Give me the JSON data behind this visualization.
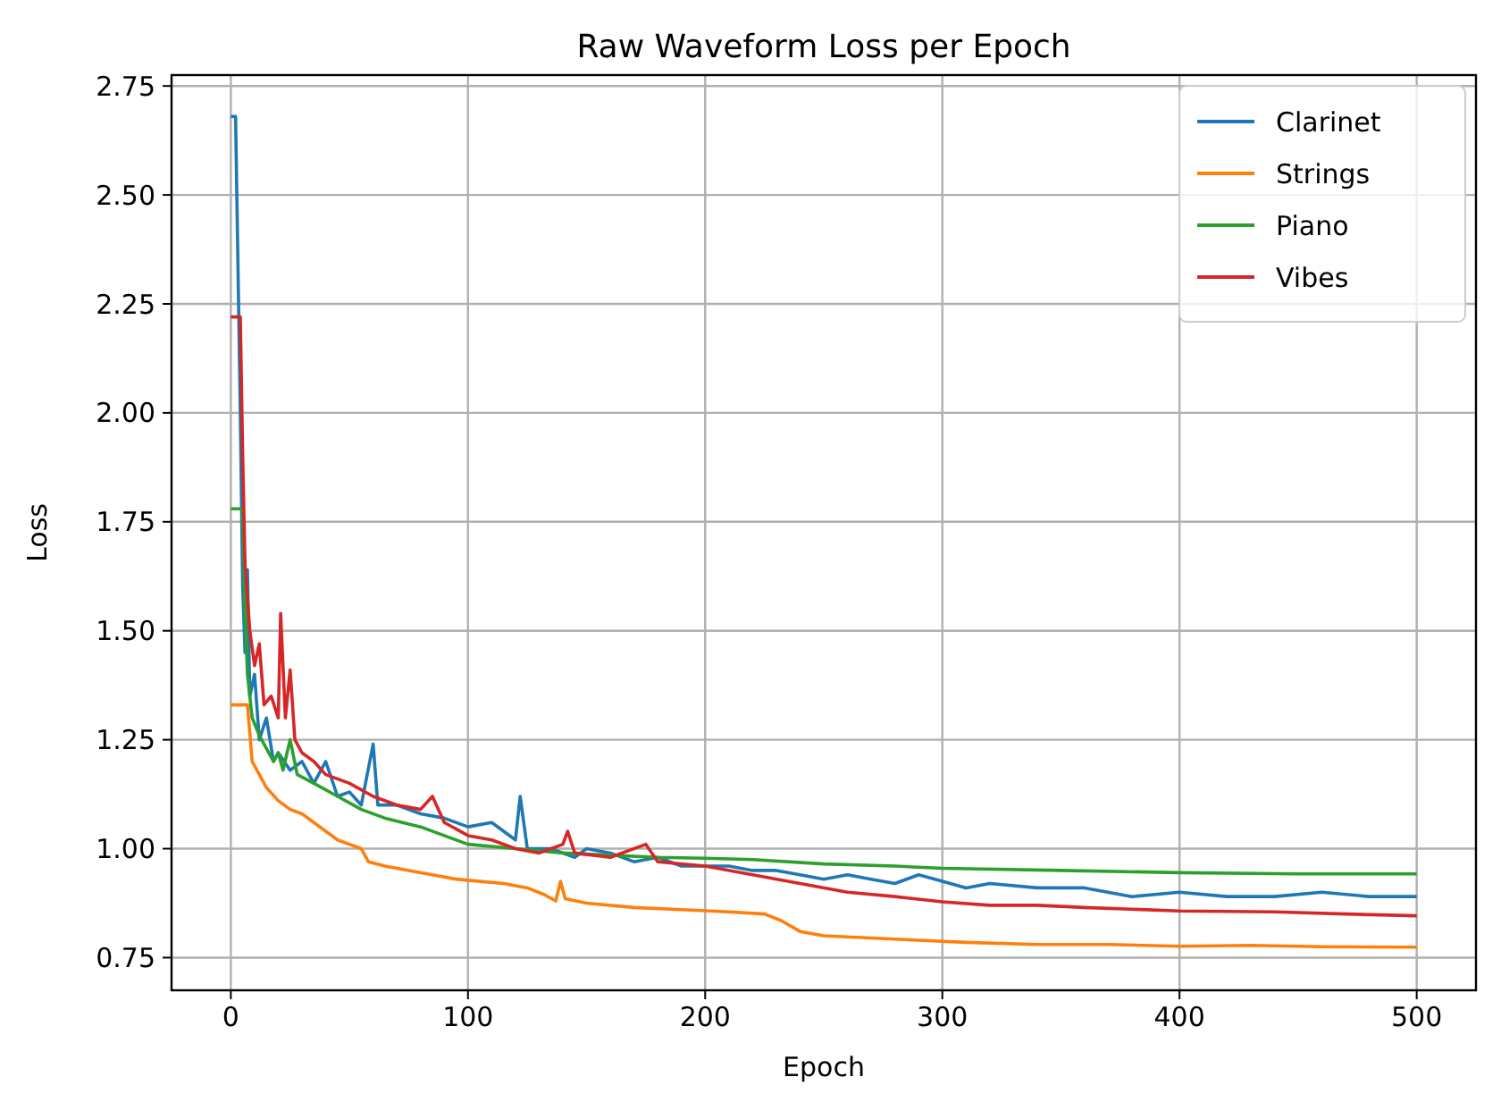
{
  "chart_data": {
    "type": "line",
    "title": "Raw Waveform Loss per Epoch",
    "xlabel": "Epoch",
    "ylabel": "Loss",
    "xlim": [
      -25,
      525
    ],
    "xticks": [
      0,
      100,
      200,
      300,
      400,
      500
    ],
    "ylim": [
      0.675,
      2.775
    ],
    "yticks": [
      {
        "value": 0.75,
        "label": "0.75"
      },
      {
        "value": 1,
        "label": "1.00"
      },
      {
        "value": 1.25,
        "label": "1.25"
      },
      {
        "value": 1.5,
        "label": "1.50"
      },
      {
        "value": 1.75,
        "label": "1.75"
      },
      {
        "value": 2,
        "label": "2.00"
      },
      {
        "value": 2.25,
        "label": "2.25"
      },
      {
        "value": 2.5,
        "label": "2.50"
      },
      {
        "value": 2.75,
        "label": "2.75"
      }
    ],
    "grid": true,
    "legend": "top right",
    "line_style": "solid",
    "series": [
      {
        "name": "Clarinet",
        "color": "#1f77b4",
        "x": [
          0,
          2,
          4,
          5,
          6,
          7,
          8,
          10,
          12,
          15,
          18,
          20,
          25,
          30,
          35,
          40,
          45,
          50,
          55,
          60,
          62,
          70,
          80,
          90,
          100,
          110,
          120,
          122,
          125,
          135,
          145,
          150,
          160,
          170,
          180,
          190,
          200,
          210,
          220,
          230,
          240,
          250,
          260,
          270,
          280,
          290,
          300,
          310,
          320,
          340,
          360,
          380,
          400,
          420,
          440,
          460,
          480,
          500
        ],
        "values": [
          2.68,
          2.68,
          2.0,
          1.6,
          1.45,
          1.64,
          1.35,
          1.4,
          1.25,
          1.3,
          1.2,
          1.22,
          1.18,
          1.2,
          1.15,
          1.2,
          1.12,
          1.13,
          1.1,
          1.24,
          1.1,
          1.1,
          1.08,
          1.07,
          1.05,
          1.06,
          1.02,
          1.12,
          1.0,
          1.0,
          0.98,
          1.0,
          0.99,
          0.97,
          0.98,
          0.96,
          0.96,
          0.96,
          0.95,
          0.95,
          0.94,
          0.93,
          0.94,
          0.93,
          0.92,
          0.94,
          0.925,
          0.91,
          0.92,
          0.91,
          0.91,
          0.89,
          0.9,
          0.89,
          0.89,
          0.9,
          0.89,
          0.89
        ]
      },
      {
        "name": "Strings",
        "color": "#ff7f0e",
        "x": [
          0,
          7,
          9,
          12,
          15,
          20,
          25,
          30,
          35,
          40,
          45,
          50,
          55,
          58,
          65,
          75,
          85,
          95,
          105,
          115,
          125,
          132,
          137,
          139,
          141,
          150,
          170,
          190,
          210,
          225,
          232,
          240,
          250,
          270,
          290,
          310,
          340,
          370,
          400,
          430,
          460,
          500
        ],
        "values": [
          1.33,
          1.33,
          1.2,
          1.17,
          1.14,
          1.11,
          1.09,
          1.08,
          1.06,
          1.04,
          1.02,
          1.01,
          1.0,
          0.97,
          0.96,
          0.95,
          0.94,
          0.93,
          0.925,
          0.92,
          0.91,
          0.895,
          0.88,
          0.925,
          0.885,
          0.875,
          0.865,
          0.86,
          0.855,
          0.85,
          0.835,
          0.81,
          0.8,
          0.795,
          0.79,
          0.785,
          0.78,
          0.78,
          0.776,
          0.778,
          0.775,
          0.774
        ]
      },
      {
        "name": "Piano",
        "color": "#2ca02c",
        "x": [
          0,
          5,
          6,
          7,
          9,
          12,
          15,
          18,
          20,
          22,
          25,
          28,
          35,
          45,
          55,
          65,
          80,
          100,
          120,
          140,
          160,
          180,
          200,
          220,
          250,
          280,
          300,
          350,
          400,
          450,
          500
        ],
        "values": [
          1.78,
          1.78,
          1.55,
          1.4,
          1.3,
          1.26,
          1.23,
          1.2,
          1.22,
          1.18,
          1.25,
          1.17,
          1.15,
          1.12,
          1.09,
          1.07,
          1.05,
          1.01,
          1.0,
          0.99,
          0.985,
          0.98,
          0.978,
          0.975,
          0.965,
          0.96,
          0.955,
          0.95,
          0.945,
          0.942,
          0.942
        ]
      },
      {
        "name": "Vibes",
        "color": "#d62728",
        "x": [
          0,
          4,
          5,
          6,
          8,
          10,
          12,
          14,
          17,
          20,
          21,
          23,
          25,
          27,
          30,
          35,
          40,
          50,
          60,
          70,
          80,
          85,
          90,
          100,
          110,
          120,
          130,
          140,
          142,
          145,
          160,
          175,
          180,
          200,
          220,
          240,
          260,
          280,
          300,
          320,
          340,
          360,
          400,
          440,
          470,
          500
        ],
        "values": [
          2.22,
          2.22,
          1.9,
          1.65,
          1.5,
          1.42,
          1.47,
          1.33,
          1.35,
          1.3,
          1.54,
          1.3,
          1.41,
          1.25,
          1.22,
          1.2,
          1.17,
          1.15,
          1.12,
          1.1,
          1.09,
          1.12,
          1.06,
          1.03,
          1.02,
          1.0,
          0.99,
          1.01,
          1.04,
          0.99,
          0.98,
          1.01,
          0.97,
          0.96,
          0.94,
          0.92,
          0.9,
          0.89,
          0.878,
          0.87,
          0.87,
          0.865,
          0.857,
          0.855,
          0.85,
          0.846
        ]
      }
    ]
  }
}
